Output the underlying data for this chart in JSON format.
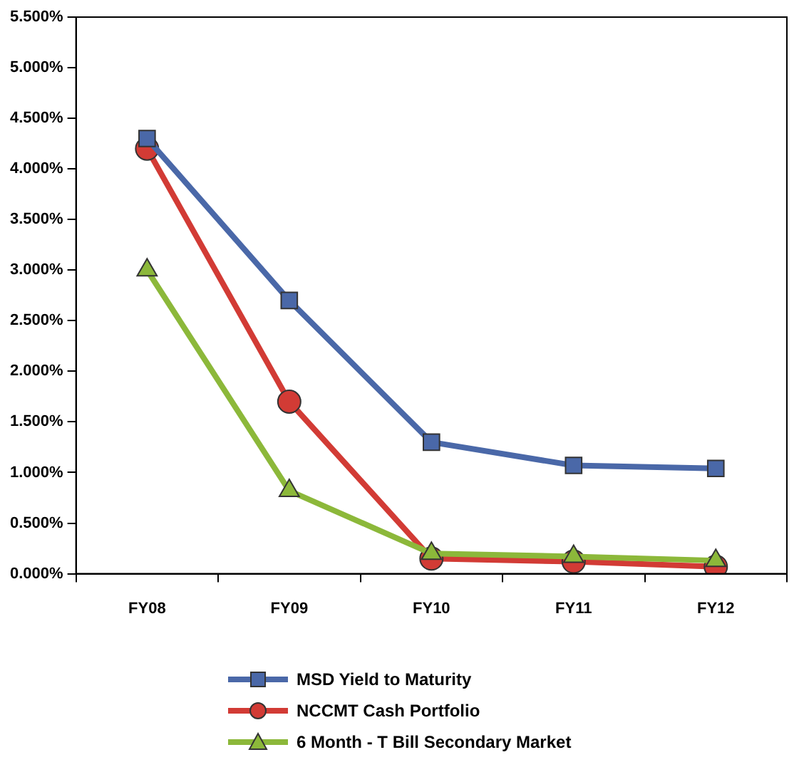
{
  "chart_data": {
    "type": "line",
    "categories": [
      "FY08",
      "FY09",
      "FY10",
      "FY11",
      "FY12"
    ],
    "series": [
      {
        "name": "MSD Yield to Maturity",
        "color": "#4a68a8",
        "marker": "square",
        "values": [
          4.3,
          2.7,
          1.3,
          1.07,
          1.04
        ]
      },
      {
        "name": "NCCMT Cash Portfolio",
        "color": "#d23b35",
        "marker": "circle",
        "values": [
          4.2,
          1.7,
          0.15,
          0.12,
          0.07
        ]
      },
      {
        "name": "6 Month - T Bill Secondary Market",
        "color": "#8cb83a",
        "marker": "triangle",
        "values": [
          3.0,
          0.82,
          0.2,
          0.17,
          0.13
        ]
      }
    ],
    "ylim": [
      0,
      5.5
    ],
    "yticks": [
      {
        "value": 0,
        "label": "0.000%"
      },
      {
        "value": 0.5,
        "label": "0.500%"
      },
      {
        "value": 1,
        "label": "1.000%"
      },
      {
        "value": 1.5,
        "label": "1.500%"
      },
      {
        "value": 2,
        "label": "2.000%"
      },
      {
        "value": 2.5,
        "label": "2.500%"
      },
      {
        "value": 3,
        "label": "3.000%"
      },
      {
        "value": 3.5,
        "label": "3.500%"
      },
      {
        "value": 4,
        "label": "4.000%"
      },
      {
        "value": 4.5,
        "label": "4.500%"
      },
      {
        "value": 5,
        "label": "5.000%"
      },
      {
        "value": 5.5,
        "label": "5.500%"
      }
    ],
    "grid": false,
    "legend": "bottom",
    "line_style": "solid"
  }
}
